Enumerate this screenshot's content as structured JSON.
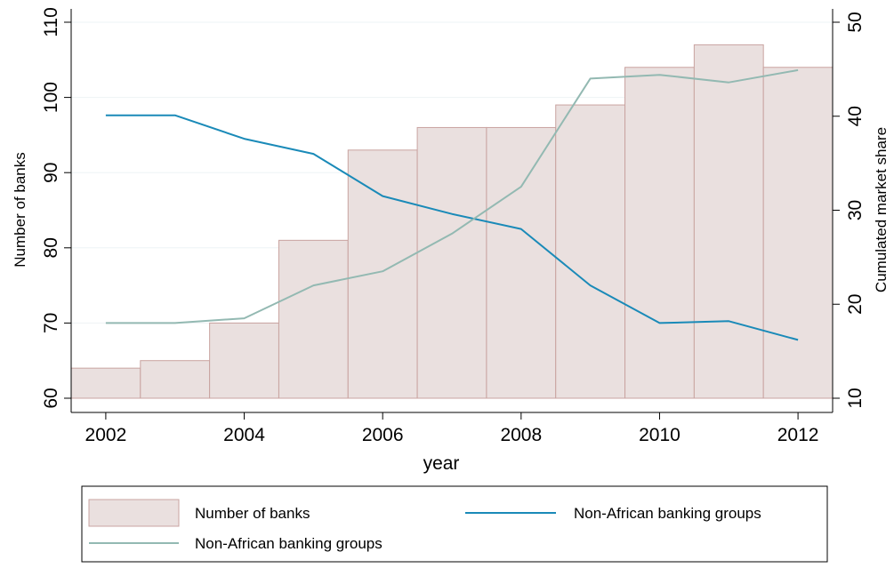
{
  "chart_data": {
    "type": "bar",
    "title": "",
    "xlabel": "year",
    "ylabel": "Number of banks",
    "y2label": "Cumulated market share",
    "x": [
      2002,
      2003,
      2004,
      2005,
      2006,
      2007,
      2008,
      2009,
      2010,
      2011,
      2012
    ],
    "x_ticks": [
      "2002",
      "2004",
      "2006",
      "2008",
      "2010",
      "2012"
    ],
    "xlim": [
      2001.5,
      2012.5
    ],
    "ylim": [
      60,
      110
    ],
    "y_ticks": [
      "60",
      "70",
      "80",
      "90",
      "100",
      "110"
    ],
    "y2lim": [
      10,
      50
    ],
    "y2_ticks": [
      "10",
      "20",
      "30",
      "40",
      "50"
    ],
    "grid": true,
    "series": [
      {
        "name": "Number of banks",
        "type": "bar",
        "axis": "left",
        "color": "#eae0df",
        "edge_color": "#c9a3a0",
        "values": [
          64,
          65,
          70,
          81,
          93,
          96,
          96,
          99,
          104,
          107,
          104
        ]
      },
      {
        "name": "Non-African banking groups",
        "type": "line",
        "axis": "right",
        "color": "#1a8ab8",
        "values": [
          40.1,
          40.1,
          37.6,
          36.0,
          31.5,
          29.6,
          28.0,
          22.0,
          18.0,
          18.2,
          16.2
        ]
      },
      {
        "name": "Non-African banking groups",
        "type": "line",
        "axis": "right",
        "color": "#93b9b2",
        "values": [
          18.0,
          18.0,
          18.5,
          22.0,
          23.5,
          27.5,
          32.5,
          44.0,
          44.4,
          43.6,
          44.9
        ]
      }
    ],
    "legend": {
      "placement": "bottom",
      "entries": [
        "Number of banks",
        "Non-African banking groups",
        "Non-African banking groups"
      ]
    }
  }
}
